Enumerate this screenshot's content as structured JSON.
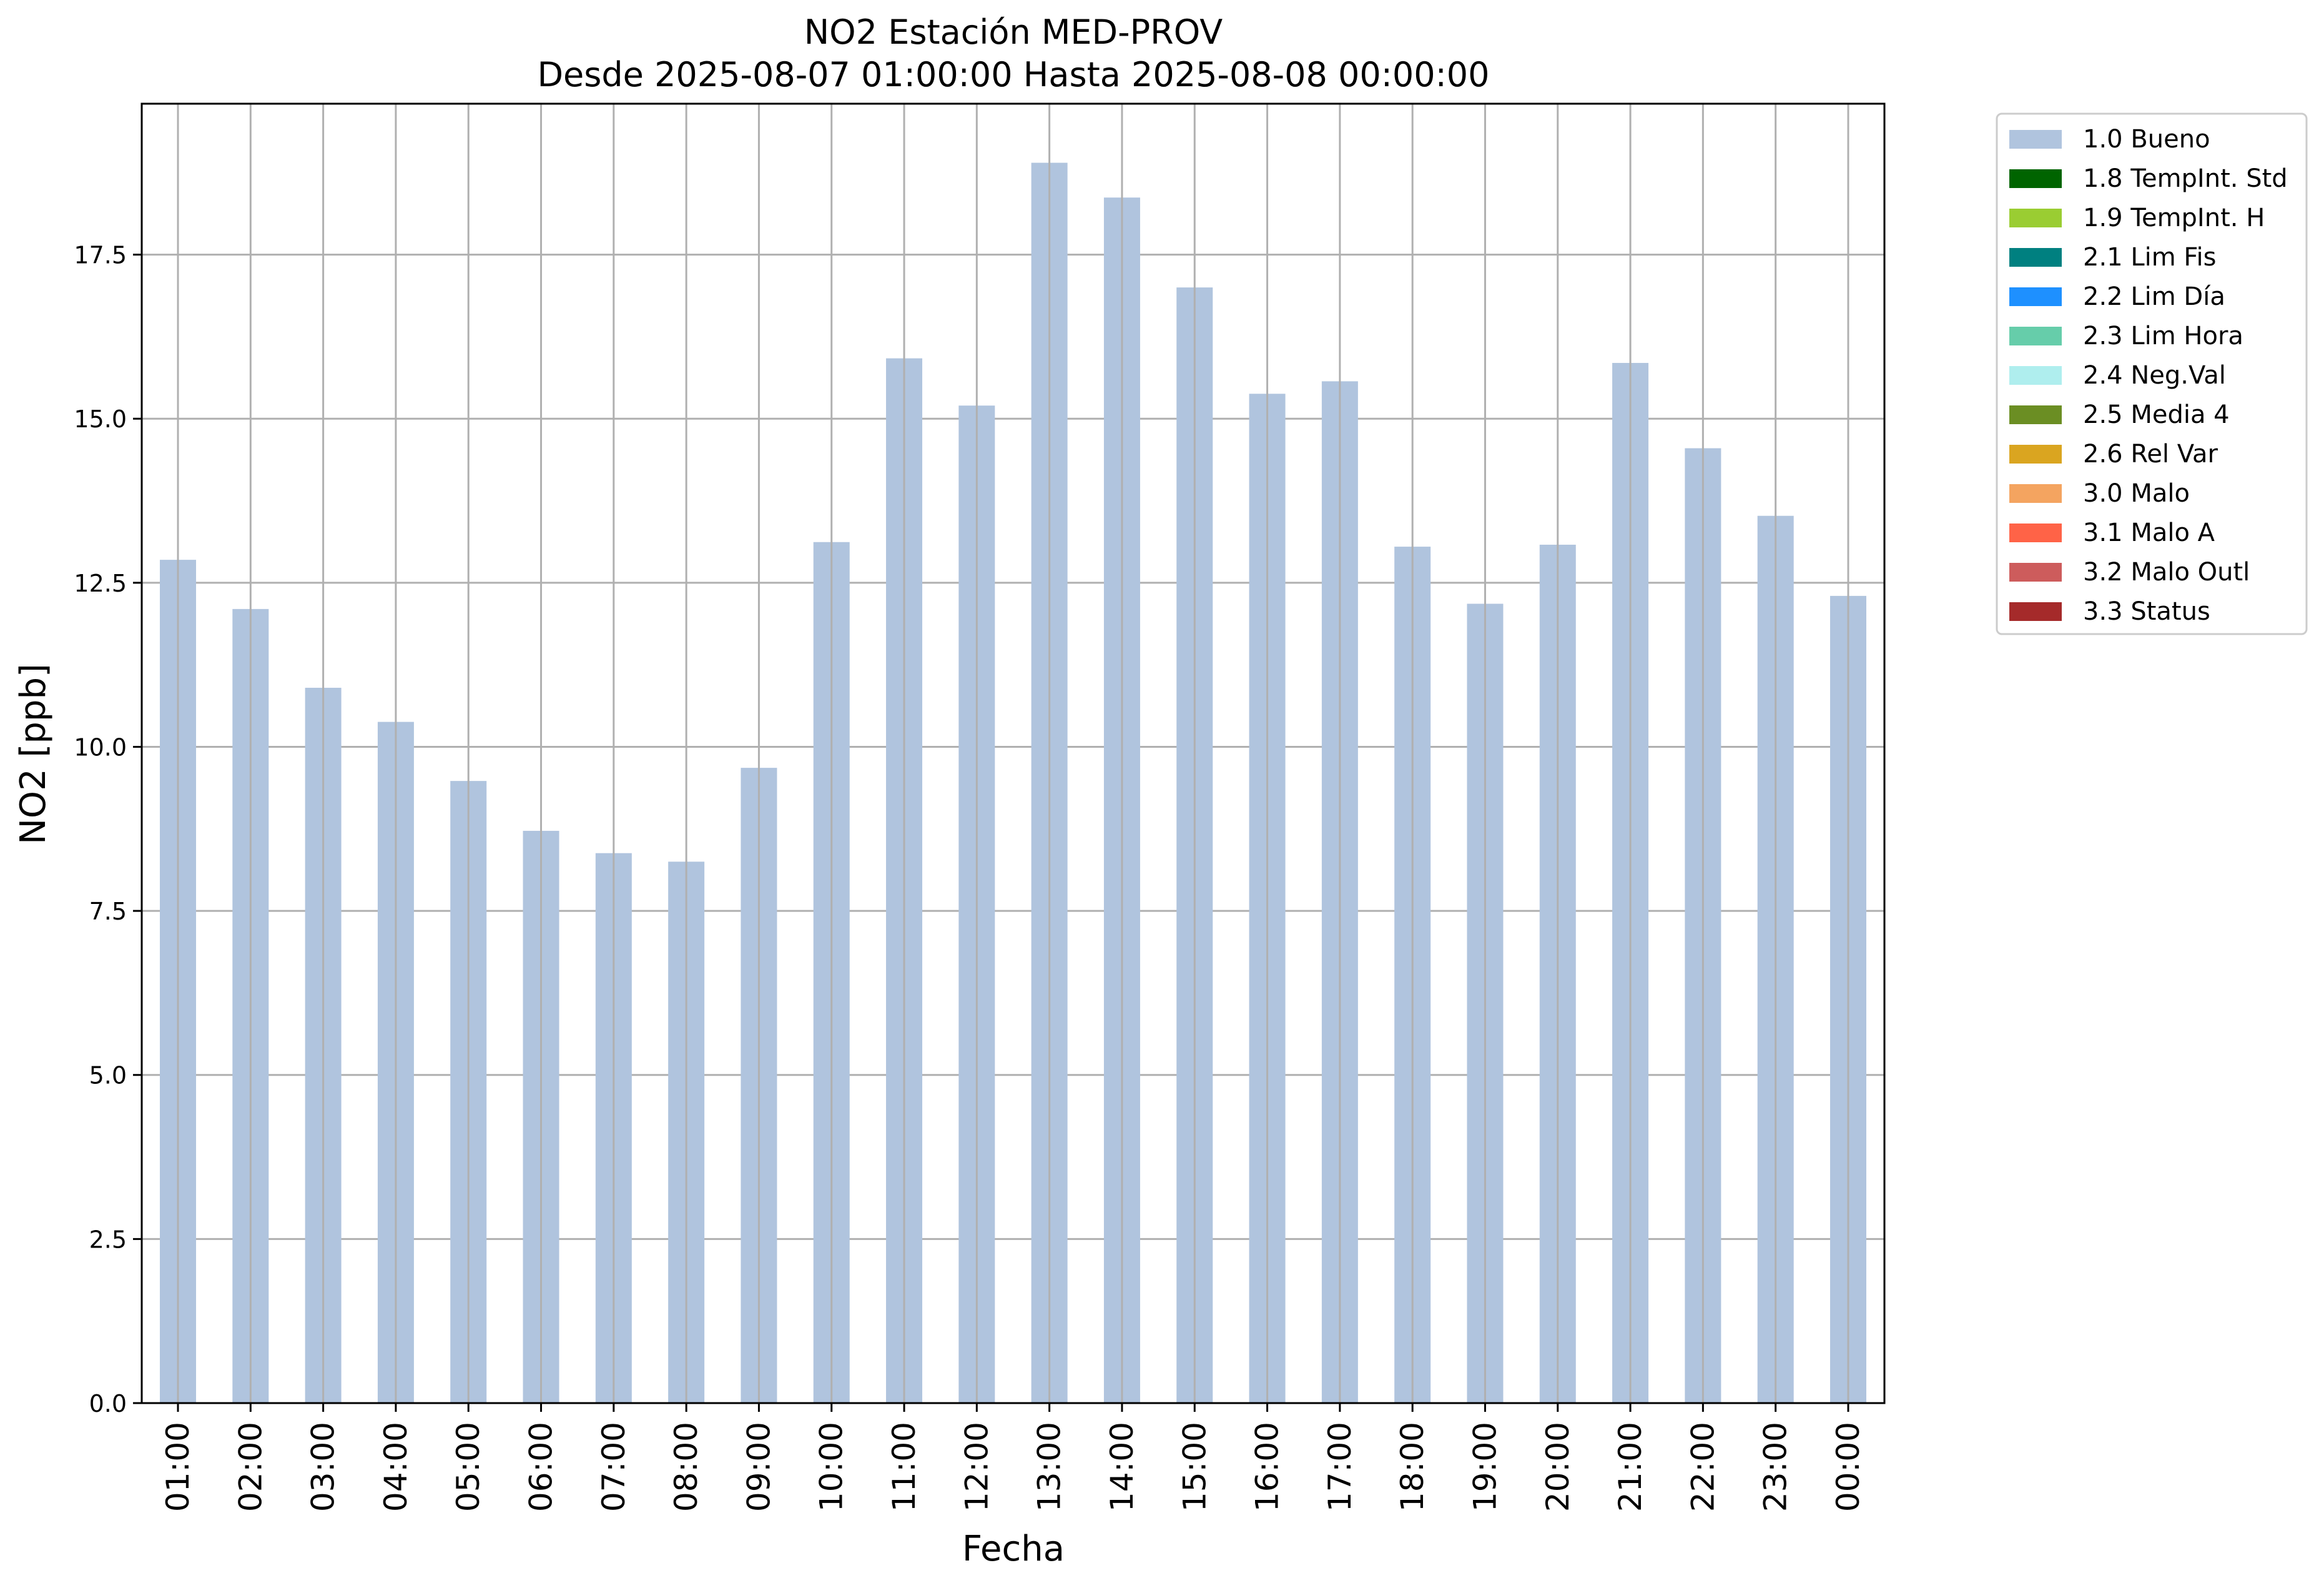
{
  "chart_data": {
    "type": "bar",
    "title": "NO2 Estación MED-PROV",
    "subtitle": "Desde 2025-08-07 01:00:00 Hasta 2025-08-08 00:00:00",
    "xlabel": "Fecha",
    "ylabel": "NO2 [ppb]",
    "ylim": [
      0,
      19.8
    ],
    "yticks": [
      "0.0",
      "2.5",
      "5.0",
      "7.5",
      "10.0",
      "12.5",
      "15.0",
      "17.5"
    ],
    "grid": true,
    "legend_position": "outside-top-right",
    "categories": [
      "01:00",
      "02:00",
      "03:00",
      "04:00",
      "05:00",
      "06:00",
      "07:00",
      "08:00",
      "09:00",
      "10:00",
      "11:00",
      "12:00",
      "13:00",
      "14:00",
      "15:00",
      "16:00",
      "17:00",
      "18:00",
      "19:00",
      "20:00",
      "21:00",
      "22:00",
      "23:00",
      "00:00"
    ],
    "series": [
      {
        "name": "1.0 Bueno",
        "color": "#b0c4de",
        "values": [
          12.85,
          12.1,
          10.9,
          10.38,
          9.48,
          8.72,
          8.38,
          8.25,
          9.68,
          13.12,
          15.92,
          15.2,
          18.9,
          18.37,
          17.0,
          15.38,
          15.57,
          13.05,
          12.18,
          13.08,
          15.85,
          14.55,
          13.52,
          12.3
        ]
      }
    ],
    "legend": [
      {
        "label": "1.0 Bueno",
        "color": "#b0c4de"
      },
      {
        "label": "1.8 TempInt. Std",
        "color": "#006400"
      },
      {
        "label": "1.9 TempInt. H",
        "color": "#9acd32"
      },
      {
        "label": "2.1 Lim Fis",
        "color": "#008080"
      },
      {
        "label": "2.2 Lim Día",
        "color": "#1e90ff"
      },
      {
        "label": "2.3 Lim Hora",
        "color": "#66cdaa"
      },
      {
        "label": "2.4 Neg.Val",
        "color": "#afeeee"
      },
      {
        "label": "2.5 Media 4",
        "color": "#6b8e23"
      },
      {
        "label": "2.6 Rel Var",
        "color": "#daa520"
      },
      {
        "label": "3.0 Malo",
        "color": "#f4a460"
      },
      {
        "label": "3.1 Malo A",
        "color": "#ff6347"
      },
      {
        "label": "3.2 Malo Outl",
        "color": "#cd5c5c"
      },
      {
        "label": "3.3 Status",
        "color": "#a52a2a"
      }
    ]
  }
}
